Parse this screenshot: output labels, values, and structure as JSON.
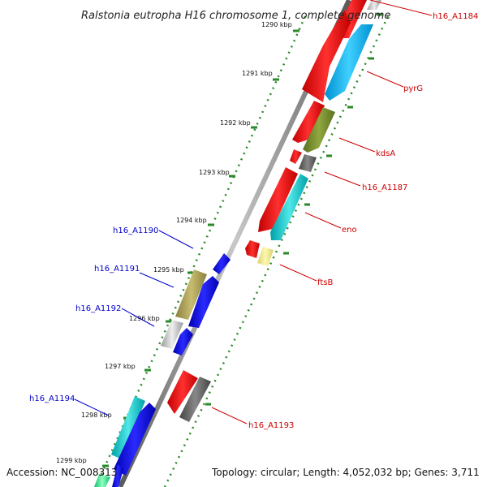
{
  "title": "Ralstonia eutropha H16 chromosome 1, complete genome",
  "footer": {
    "accession": "Accession: NC_008313",
    "summary": "Topology: circular; Length: 4,052,032 bp; Genes: 3,711"
  },
  "ticks": [
    "1290 kbp",
    "1291 kbp",
    "1292 kbp",
    "1293 kbp",
    "1294 kbp",
    "1295 kbp",
    "1296 kbp",
    "1297 kbp",
    "1298 kbp",
    "1299 kbp"
  ],
  "genes": {
    "h16_A1184": "h16_A1184",
    "pyrG": "pyrG",
    "kdsA": "kdsA",
    "h16_A1187": "h16_A1187",
    "eno": "eno",
    "ftsB": "ftsB",
    "h16_A1193": "h16_A1193",
    "h16_A1190": "h16_A1190",
    "h16_A1191": "h16_A1191",
    "h16_A1192": "h16_A1192",
    "h16_A1194": "h16_A1194"
  },
  "colors": {
    "forward_cds": "#ff0000",
    "reverse_cds": "#0000ff",
    "backbone": "#888888",
    "tick": "#2a8a2a",
    "label_forward": "#cc0000",
    "label_reverse": "#0000cc"
  }
}
